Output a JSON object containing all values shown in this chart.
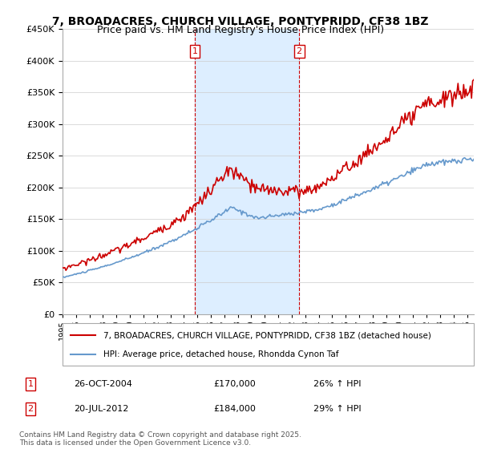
{
  "title_line1": "7, BROADACRES, CHURCH VILLAGE, PONTYPRIDD, CF38 1BZ",
  "title_line2": "Price paid vs. HM Land Registry's House Price Index (HPI)",
  "legend_line1": "7, BROADACRES, CHURCH VILLAGE, PONTYPRIDD, CF38 1BZ (detached house)",
  "legend_line2": "HPI: Average price, detached house, Rhondda Cynon Taf",
  "annotation1_date": "26-OCT-2004",
  "annotation1_price": "£170,000",
  "annotation1_hpi": "26% ↑ HPI",
  "annotation2_date": "20-JUL-2012",
  "annotation2_price": "£184,000",
  "annotation2_hpi": "29% ↑ HPI",
  "footer": "Contains HM Land Registry data © Crown copyright and database right 2025.\nThis data is licensed under the Open Government Licence v3.0.",
  "ylim": [
    0,
    450000
  ],
  "yticks": [
    0,
    50000,
    100000,
    150000,
    200000,
    250000,
    300000,
    350000,
    400000,
    450000
  ],
  "red_color": "#cc0000",
  "blue_color": "#6699cc",
  "shade_color": "#ddeeff",
  "vline_color": "#cc0000",
  "sale1_x": 2004.82,
  "sale2_x": 2012.55,
  "sale1_value": 170000,
  "sale2_value": 184000
}
